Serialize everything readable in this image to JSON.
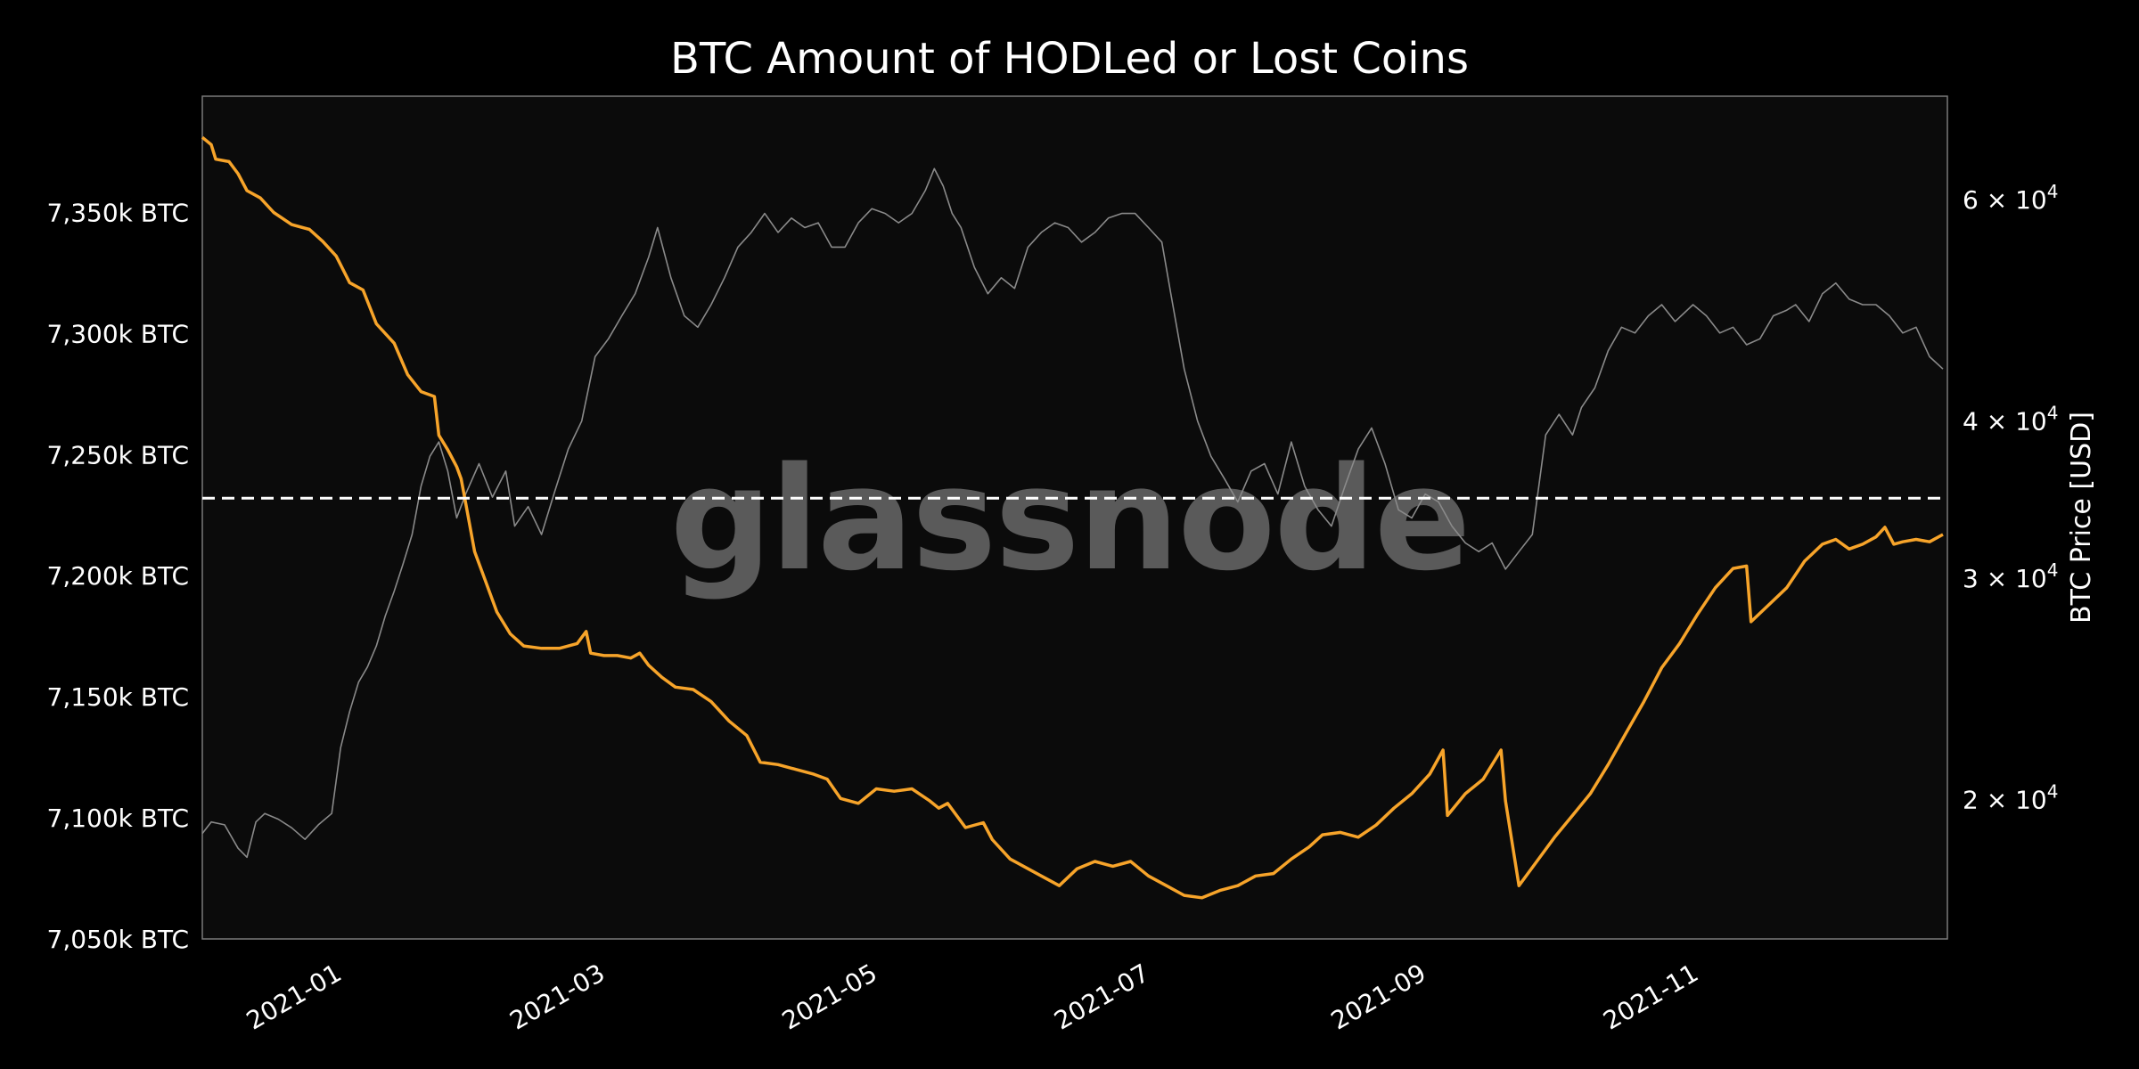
{
  "chart_data": {
    "type": "line",
    "title": "BTC Amount of HODLed or Lost Coins",
    "watermark": "glassnode",
    "ylabel_right": "BTC Price [USD]",
    "x_range": [
      "2020-12-02",
      "2021-12-28"
    ],
    "x_ticks": [
      "2021-01",
      "2021-03",
      "2021-05",
      "2021-07",
      "2021-09",
      "2021-11"
    ],
    "y_left": {
      "range": [
        7050,
        7398
      ],
      "ticks": [
        7050,
        7100,
        7150,
        7200,
        7250,
        7300,
        7350
      ],
      "tick_labels": [
        "7,050k BTC",
        "7,100k BTC",
        "7,150k BTC",
        "7,200k BTC",
        "7,250k BTC",
        "7,300k BTC",
        "7,350k BTC"
      ]
    },
    "y_right": {
      "scale": "log",
      "range": [
        15500,
        72500
      ],
      "ticks": [
        20000,
        30000,
        40000,
        60000
      ],
      "tick_labels": [
        {
          "mantissa": "2",
          "exponent": "4"
        },
        {
          "mantissa": "3",
          "exponent": "4"
        },
        {
          "mantissa": "4",
          "exponent": "4"
        },
        {
          "mantissa": "6",
          "exponent": "4"
        }
      ]
    },
    "reference_line": {
      "axis": "left",
      "value": 7232,
      "style": "dashed",
      "color": "#ffffff"
    },
    "colors": {
      "background": "#000000",
      "plot_background": "#0b0b0b",
      "hodl": "#f7a42a",
      "price": "#8a8a8a",
      "frame": "#7a7a7a"
    },
    "series": [
      {
        "axis": "left",
        "color": "#f7a42a",
        "points": [
          [
            "2020-12-02",
            7381
          ],
          [
            "2020-12-04",
            7378
          ],
          [
            "2020-12-05",
            7372
          ],
          [
            "2020-12-08",
            7371
          ],
          [
            "2020-12-10",
            7366
          ],
          [
            "2020-12-12",
            7359
          ],
          [
            "2020-12-15",
            7356
          ],
          [
            "2020-12-18",
            7350
          ],
          [
            "2020-12-22",
            7345
          ],
          [
            "2020-12-26",
            7343
          ],
          [
            "2020-12-29",
            7338
          ],
          [
            "2021-01-01",
            7332
          ],
          [
            "2021-01-04",
            7321
          ],
          [
            "2021-01-07",
            7318
          ],
          [
            "2021-01-10",
            7304
          ],
          [
            "2021-01-14",
            7296
          ],
          [
            "2021-01-17",
            7283
          ],
          [
            "2021-01-20",
            7276
          ],
          [
            "2021-01-23",
            7274
          ],
          [
            "2021-01-24",
            7258
          ],
          [
            "2021-01-26",
            7252
          ],
          [
            "2021-01-28",
            7245
          ],
          [
            "2021-01-29",
            7240
          ],
          [
            "2021-01-30",
            7230
          ],
          [
            "2021-02-01",
            7210
          ],
          [
            "2021-02-03",
            7200
          ],
          [
            "2021-02-06",
            7185
          ],
          [
            "2021-02-09",
            7176
          ],
          [
            "2021-02-12",
            7171
          ],
          [
            "2021-02-16",
            7170
          ],
          [
            "2021-02-20",
            7170
          ],
          [
            "2021-02-24",
            7172
          ],
          [
            "2021-02-26",
            7177
          ],
          [
            "2021-02-27",
            7168
          ],
          [
            "2021-03-02",
            7167
          ],
          [
            "2021-03-05",
            7167
          ],
          [
            "2021-03-08",
            7166
          ],
          [
            "2021-03-10",
            7168
          ],
          [
            "2021-03-12",
            7163
          ],
          [
            "2021-03-15",
            7158
          ],
          [
            "2021-03-18",
            7154
          ],
          [
            "2021-03-22",
            7153
          ],
          [
            "2021-03-26",
            7148
          ],
          [
            "2021-03-30",
            7140
          ],
          [
            "2021-04-03",
            7134
          ],
          [
            "2021-04-06",
            7123
          ],
          [
            "2021-04-10",
            7122
          ],
          [
            "2021-04-14",
            7120
          ],
          [
            "2021-04-18",
            7118
          ],
          [
            "2021-04-21",
            7116
          ],
          [
            "2021-04-24",
            7108
          ],
          [
            "2021-04-28",
            7106
          ],
          [
            "2021-05-02",
            7112
          ],
          [
            "2021-05-06",
            7111
          ],
          [
            "2021-05-10",
            7112
          ],
          [
            "2021-05-14",
            7107
          ],
          [
            "2021-05-16",
            7104
          ],
          [
            "2021-05-18",
            7106
          ],
          [
            "2021-05-22",
            7096
          ],
          [
            "2021-05-26",
            7098
          ],
          [
            "2021-05-28",
            7091
          ],
          [
            "2021-06-01",
            7083
          ],
          [
            "2021-06-04",
            7080
          ],
          [
            "2021-06-08",
            7076
          ],
          [
            "2021-06-12",
            7072
          ],
          [
            "2021-06-16",
            7079
          ],
          [
            "2021-06-20",
            7082
          ],
          [
            "2021-06-24",
            7080
          ],
          [
            "2021-06-28",
            7082
          ],
          [
            "2021-07-02",
            7076
          ],
          [
            "2021-07-06",
            7072
          ],
          [
            "2021-07-10",
            7068
          ],
          [
            "2021-07-14",
            7067
          ],
          [
            "2021-07-18",
            7070
          ],
          [
            "2021-07-22",
            7072
          ],
          [
            "2021-07-26",
            7076
          ],
          [
            "2021-07-30",
            7077
          ],
          [
            "2021-08-03",
            7083
          ],
          [
            "2021-08-07",
            7088
          ],
          [
            "2021-08-10",
            7093
          ],
          [
            "2021-08-14",
            7094
          ],
          [
            "2021-08-18",
            7092
          ],
          [
            "2021-08-22",
            7097
          ],
          [
            "2021-08-26",
            7104
          ],
          [
            "2021-08-30",
            7110
          ],
          [
            "2021-09-03",
            7118
          ],
          [
            "2021-09-06",
            7128
          ],
          [
            "2021-09-07",
            7101
          ],
          [
            "2021-09-11",
            7110
          ],
          [
            "2021-09-15",
            7116
          ],
          [
            "2021-09-19",
            7128
          ],
          [
            "2021-09-20",
            7107
          ],
          [
            "2021-09-23",
            7072
          ],
          [
            "2021-09-27",
            7082
          ],
          [
            "2021-10-01",
            7092
          ],
          [
            "2021-10-05",
            7101
          ],
          [
            "2021-10-09",
            7110
          ],
          [
            "2021-10-13",
            7122
          ],
          [
            "2021-10-17",
            7135
          ],
          [
            "2021-10-21",
            7148
          ],
          [
            "2021-10-25",
            7162
          ],
          [
            "2021-10-29",
            7172
          ],
          [
            "2021-11-02",
            7184
          ],
          [
            "2021-11-06",
            7195
          ],
          [
            "2021-11-10",
            7203
          ],
          [
            "2021-11-13",
            7204
          ],
          [
            "2021-11-14",
            7181
          ],
          [
            "2021-11-18",
            7188
          ],
          [
            "2021-11-22",
            7195
          ],
          [
            "2021-11-26",
            7206
          ],
          [
            "2021-11-30",
            7213
          ],
          [
            "2021-12-03",
            7215
          ],
          [
            "2021-12-06",
            7211
          ],
          [
            "2021-12-09",
            7213
          ],
          [
            "2021-12-12",
            7216
          ],
          [
            "2021-12-14",
            7220
          ],
          [
            "2021-12-16",
            7213
          ],
          [
            "2021-12-18",
            7214
          ],
          [
            "2021-12-21",
            7215
          ],
          [
            "2021-12-24",
            7214
          ],
          [
            "2021-12-27",
            7217
          ]
        ]
      },
      {
        "axis": "right",
        "color": "#8a8a8a",
        "points": [
          [
            "2020-12-02",
            18800
          ],
          [
            "2020-12-04",
            19200
          ],
          [
            "2020-12-07",
            19100
          ],
          [
            "2020-12-10",
            18300
          ],
          [
            "2020-12-12",
            18000
          ],
          [
            "2020-12-14",
            19200
          ],
          [
            "2020-12-16",
            19500
          ],
          [
            "2020-12-19",
            19300
          ],
          [
            "2020-12-22",
            19000
          ],
          [
            "2020-12-25",
            18600
          ],
          [
            "2020-12-28",
            19100
          ],
          [
            "2020-12-31",
            19500
          ],
          [
            "2021-01-02",
            22000
          ],
          [
            "2021-01-04",
            23500
          ],
          [
            "2021-01-06",
            24800
          ],
          [
            "2021-01-08",
            25500
          ],
          [
            "2021-01-10",
            26500
          ],
          [
            "2021-01-12",
            28000
          ],
          [
            "2021-01-14",
            29300
          ],
          [
            "2021-01-16",
            30800
          ],
          [
            "2021-01-18",
            32500
          ],
          [
            "2021-01-20",
            35500
          ],
          [
            "2021-01-22",
            37500
          ],
          [
            "2021-01-24",
            38500
          ],
          [
            "2021-01-26",
            36500
          ],
          [
            "2021-01-28",
            33500
          ],
          [
            "2021-01-30",
            35000
          ],
          [
            "2021-02-02",
            37000
          ],
          [
            "2021-02-05",
            34800
          ],
          [
            "2021-02-08",
            36500
          ],
          [
            "2021-02-10",
            33000
          ],
          [
            "2021-02-13",
            34200
          ],
          [
            "2021-02-16",
            32500
          ],
          [
            "2021-02-19",
            35200
          ],
          [
            "2021-02-22",
            38000
          ],
          [
            "2021-02-25",
            40000
          ],
          [
            "2021-02-28",
            45000
          ],
          [
            "2021-03-03",
            46500
          ],
          [
            "2021-03-06",
            48500
          ],
          [
            "2021-03-09",
            50500
          ],
          [
            "2021-03-12",
            54000
          ],
          [
            "2021-03-14",
            57000
          ],
          [
            "2021-03-17",
            52000
          ],
          [
            "2021-03-20",
            48500
          ],
          [
            "2021-03-23",
            47500
          ],
          [
            "2021-03-26",
            49500
          ],
          [
            "2021-03-29",
            52000
          ],
          [
            "2021-04-01",
            55000
          ],
          [
            "2021-04-04",
            56500
          ],
          [
            "2021-04-07",
            58500
          ],
          [
            "2021-04-10",
            56500
          ],
          [
            "2021-04-13",
            58000
          ],
          [
            "2021-04-16",
            57000
          ],
          [
            "2021-04-19",
            57500
          ],
          [
            "2021-04-22",
            55000
          ],
          [
            "2021-04-25",
            55000
          ],
          [
            "2021-04-28",
            57500
          ],
          [
            "2021-05-01",
            59000
          ],
          [
            "2021-05-04",
            58500
          ],
          [
            "2021-05-07",
            57500
          ],
          [
            "2021-05-10",
            58500
          ],
          [
            "2021-05-13",
            61000
          ],
          [
            "2021-05-15",
            63500
          ],
          [
            "2021-05-17",
            61500
          ],
          [
            "2021-05-19",
            58500
          ],
          [
            "2021-05-21",
            57000
          ],
          [
            "2021-05-24",
            53000
          ],
          [
            "2021-05-27",
            50500
          ],
          [
            "2021-05-30",
            52000
          ],
          [
            "2021-06-02",
            51000
          ],
          [
            "2021-06-05",
            55000
          ],
          [
            "2021-06-08",
            56500
          ],
          [
            "2021-06-11",
            57500
          ],
          [
            "2021-06-14",
            57000
          ],
          [
            "2021-06-17",
            55500
          ],
          [
            "2021-06-20",
            56500
          ],
          [
            "2021-06-23",
            58000
          ],
          [
            "2021-06-26",
            58500
          ],
          [
            "2021-06-29",
            58500
          ],
          [
            "2021-07-02",
            57000
          ],
          [
            "2021-07-05",
            55500
          ],
          [
            "2021-07-07",
            50500
          ],
          [
            "2021-07-10",
            44000
          ],
          [
            "2021-07-13",
            40000
          ],
          [
            "2021-07-16",
            37500
          ],
          [
            "2021-07-19",
            36000
          ],
          [
            "2021-07-22",
            34500
          ],
          [
            "2021-07-25",
            36500
          ],
          [
            "2021-07-28",
            37000
          ],
          [
            "2021-07-31",
            35000
          ],
          [
            "2021-08-03",
            38500
          ],
          [
            "2021-08-06",
            35500
          ],
          [
            "2021-08-09",
            34000
          ],
          [
            "2021-08-12",
            33000
          ],
          [
            "2021-08-15",
            35500
          ],
          [
            "2021-08-18",
            38000
          ],
          [
            "2021-08-21",
            39500
          ],
          [
            "2021-08-24",
            37000
          ],
          [
            "2021-08-27",
            34000
          ],
          [
            "2021-08-30",
            33500
          ],
          [
            "2021-09-02",
            35000
          ],
          [
            "2021-09-05",
            34500
          ],
          [
            "2021-09-08",
            33000
          ],
          [
            "2021-09-11",
            32000
          ],
          [
            "2021-09-14",
            31500
          ],
          [
            "2021-09-17",
            32000
          ],
          [
            "2021-09-20",
            30500
          ],
          [
            "2021-09-23",
            31500
          ],
          [
            "2021-09-26",
            32500
          ],
          [
            "2021-09-29",
            39000
          ],
          [
            "2021-10-02",
            40500
          ],
          [
            "2021-10-05",
            39000
          ],
          [
            "2021-10-07",
            41000
          ],
          [
            "2021-10-10",
            42500
          ],
          [
            "2021-10-13",
            45500
          ],
          [
            "2021-10-16",
            47500
          ],
          [
            "2021-10-19",
            47000
          ],
          [
            "2021-10-22",
            48500
          ],
          [
            "2021-10-25",
            49500
          ],
          [
            "2021-10-28",
            48000
          ],
          [
            "2021-11-01",
            49500
          ],
          [
            "2021-11-04",
            48500
          ],
          [
            "2021-11-07",
            47000
          ],
          [
            "2021-11-10",
            47500
          ],
          [
            "2021-11-13",
            46000
          ],
          [
            "2021-11-16",
            46500
          ],
          [
            "2021-11-19",
            48500
          ],
          [
            "2021-11-22",
            49000
          ],
          [
            "2021-11-24",
            49500
          ],
          [
            "2021-11-27",
            48000
          ],
          [
            "2021-11-30",
            50500
          ],
          [
            "2021-12-03",
            51500
          ],
          [
            "2021-12-06",
            50000
          ],
          [
            "2021-12-09",
            49500
          ],
          [
            "2021-12-12",
            49500
          ],
          [
            "2021-12-15",
            48500
          ],
          [
            "2021-12-18",
            47000
          ],
          [
            "2021-12-21",
            47500
          ],
          [
            "2021-12-24",
            45000
          ],
          [
            "2021-12-27",
            44000
          ]
        ]
      }
    ]
  }
}
